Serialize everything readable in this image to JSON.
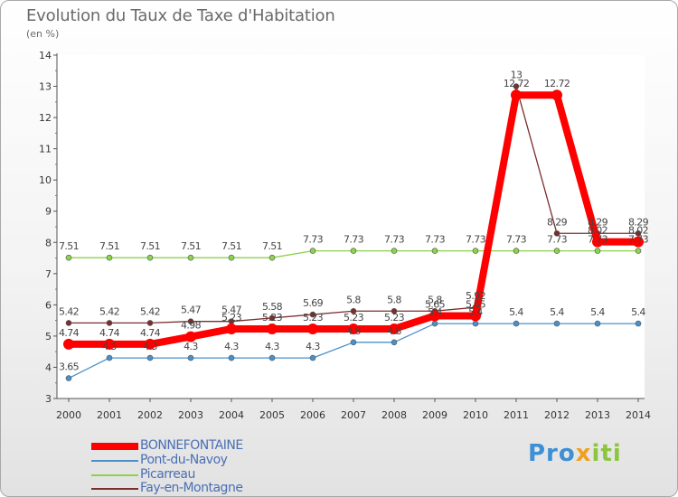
{
  "chart_data": {
    "type": "line",
    "title": "Evolution du Taux de Taxe d'Habitation",
    "unit_label": "(en %)",
    "xlabel": "",
    "ylabel": "",
    "categories": [
      "2000",
      "2001",
      "2002",
      "2003",
      "2004",
      "2005",
      "2006",
      "2007",
      "2008",
      "2009",
      "2010",
      "2011",
      "2012",
      "2013",
      "2014"
    ],
    "y_ticks": [
      "3",
      "4",
      "5",
      "6",
      "7",
      "8",
      "9",
      "10",
      "11",
      "12",
      "13",
      "14"
    ],
    "ylim": [
      3,
      14
    ],
    "grid": false,
    "series": [
      {
        "name": "BONNEFONTAINE",
        "color": "#ff0000",
        "values": [
          4.74,
          4.74,
          4.74,
          4.98,
          5.23,
          5.23,
          5.23,
          5.23,
          5.23,
          5.65,
          5.65,
          12.72,
          12.72,
          8.02,
          8.02
        ],
        "labels": [
          "4.74",
          "4.74",
          "4.74",
          "4.98",
          "5.23",
          "5.23",
          "5.23",
          "5.23",
          "5.23",
          "5.65",
          "5.65",
          "12.72",
          "12.72",
          "8.02",
          "8.02"
        ]
      },
      {
        "name": "Pont-du-Navoy",
        "color": "#4a90c8",
        "values": [
          3.65,
          4.3,
          4.3,
          4.3,
          4.3,
          4.3,
          4.3,
          4.8,
          4.8,
          5.4,
          5.4,
          5.4,
          5.4,
          5.4,
          5.4
        ],
        "labels": [
          "3.65",
          "4.3",
          "4.3",
          "4.3",
          "4.3",
          "4.3",
          "4.3",
          "4.8",
          "4.8",
          "5.4",
          "5.4",
          "5.4",
          "5.4",
          "5.4",
          "5.4"
        ]
      },
      {
        "name": "Picarreau",
        "color": "#8cd24c",
        "values": [
          7.51,
          7.51,
          7.51,
          7.51,
          7.51,
          7.51,
          7.73,
          7.73,
          7.73,
          7.73,
          7.73,
          7.73,
          7.73,
          7.73,
          7.73
        ],
        "labels": [
          "7.51",
          "7.51",
          "7.51",
          "7.51",
          "7.51",
          "7.51",
          "7.73",
          "7.73",
          "7.73",
          "7.73",
          "7.73",
          "7.73",
          "7.73",
          "7.73",
          "7.73"
        ]
      },
      {
        "name": "Fay-en-Montagne",
        "color": "#7a2e2e",
        "values": [
          5.42,
          5.42,
          5.42,
          5.47,
          5.47,
          5.58,
          5.69,
          5.8,
          5.8,
          5.8,
          5.92,
          13,
          8.29,
          8.29,
          8.29
        ],
        "labels": [
          "5.42",
          "5.42",
          "5.42",
          "5.47",
          "5.47",
          "5.58",
          "5.69",
          "5.8",
          "5.8",
          "5.8",
          "5.92",
          "13",
          "8.29",
          "8.29",
          "8.29"
        ]
      }
    ]
  },
  "logo": {
    "part1": "Pro",
    "part2": "x",
    "part3": "iti"
  }
}
